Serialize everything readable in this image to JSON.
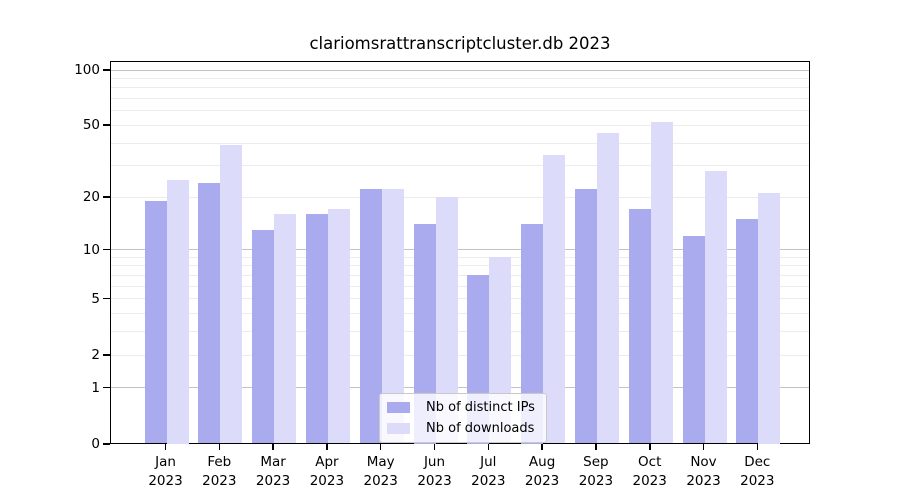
{
  "chart_data": {
    "type": "bar",
    "title": "clariomsrattranscriptcluster.db 2023",
    "categories": [
      "Jan",
      "Feb",
      "Mar",
      "Apr",
      "May",
      "Jun",
      "Jul",
      "Aug",
      "Sep",
      "Oct",
      "Nov",
      "Dec"
    ],
    "year": "2023",
    "series": [
      {
        "name": "Nb of distinct IPs",
        "color": "#aaaaee",
        "values": [
          19,
          24,
          13,
          16,
          22,
          14,
          7,
          14,
          22,
          17,
          12,
          15
        ]
      },
      {
        "name": "Nb of downloads",
        "color": "#dcdcfa",
        "values": [
          25,
          39,
          16,
          17,
          22,
          20,
          9,
          34,
          45,
          52,
          28,
          21
        ]
      }
    ],
    "xlabel": "",
    "ylabel": "",
    "yscale": "log1p",
    "ylim": [
      0,
      112
    ],
    "y_ticks": [
      100,
      50,
      20,
      10,
      5,
      2,
      1,
      0
    ],
    "grid": {
      "minor_values": [
        2,
        3,
        4,
        5,
        6,
        7,
        8,
        9,
        20,
        30,
        40,
        50,
        60,
        70,
        80,
        90
      ],
      "major_values": [
        1,
        10,
        100
      ],
      "minor_color": "#ececec",
      "major_color": "#c3c3c3"
    },
    "legend_position": "bottom-center"
  }
}
